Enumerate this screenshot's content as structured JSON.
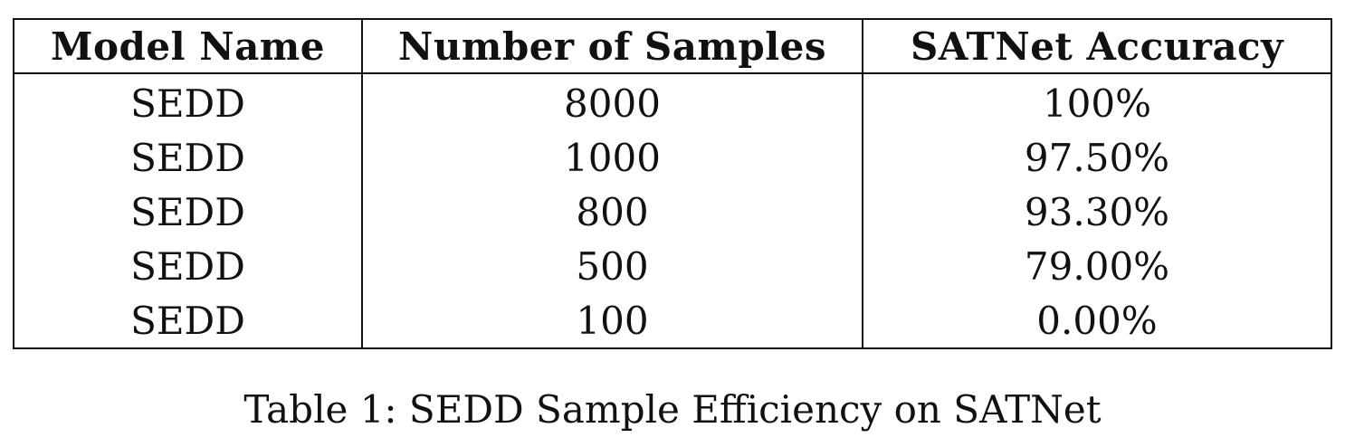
{
  "table": {
    "headers": [
      "Model Name",
      "Number of Samples",
      "SATNet Accuracy"
    ],
    "rows": [
      [
        "SEDD",
        "8000",
        "100%"
      ],
      [
        "SEDD",
        "1000",
        "97.50%"
      ],
      [
        "SEDD",
        "800",
        "93.30%"
      ],
      [
        "SEDD",
        "500",
        "79.00%"
      ],
      [
        "SEDD",
        "100",
        "0.00%"
      ]
    ]
  },
  "caption": "Table 1: SEDD Sample Efficiency on SATNet"
}
